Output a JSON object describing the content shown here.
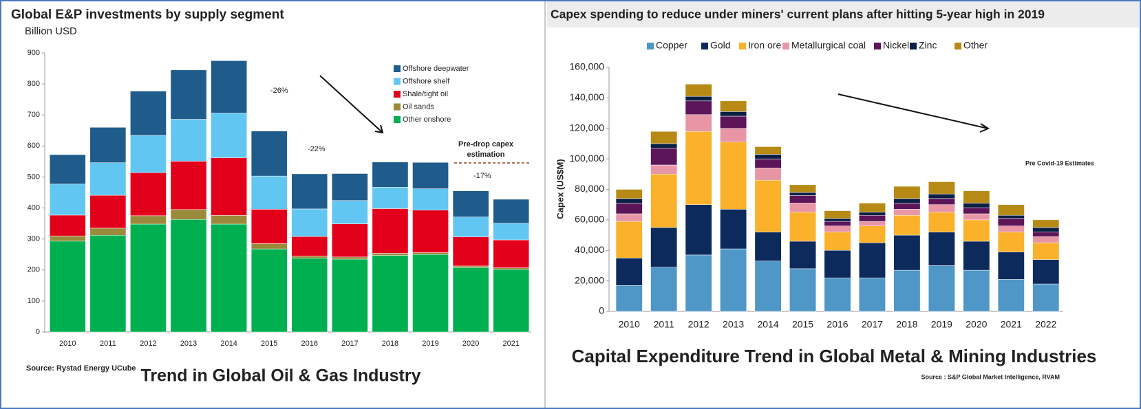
{
  "chart_data": [
    {
      "type": "stacked_bar",
      "title": "Global E&P investments by supply segment",
      "subtitle": "Billion USD",
      "categories": [
        "2010",
        "2011",
        "2012",
        "2013",
        "2014",
        "2015",
        "2016",
        "2017",
        "2018",
        "2019",
        "2020",
        "2021"
      ],
      "series": [
        {
          "name": "Other onshore",
          "color": "#00b050",
          "values": [
            293,
            312,
            348,
            363,
            348,
            268,
            238,
            235,
            247,
            250,
            208,
            202
          ]
        },
        {
          "name": "Oil sands",
          "color": "#9a8b3c",
          "values": [
            17,
            23,
            27,
            32,
            28,
            17,
            7,
            7,
            7,
            6,
            5,
            5
          ]
        },
        {
          "name": "Shale/tight oil",
          "color": "#e3001b",
          "values": [
            67,
            106,
            139,
            156,
            186,
            111,
            63,
            107,
            144,
            137,
            94,
            90
          ]
        },
        {
          "name": "Offshore shelf",
          "color": "#62c6f2",
          "values": [
            100,
            105,
            120,
            135,
            144,
            107,
            89,
            75,
            69,
            69,
            64,
            54
          ]
        },
        {
          "name": "Offshore deepwater",
          "color": "#1f5c8b",
          "values": [
            95,
            114,
            143,
            159,
            169,
            145,
            113,
            87,
            81,
            85,
            84,
            77
          ]
        }
      ],
      "ylim": [
        0,
        900
      ],
      "yticks": [
        0,
        100,
        200,
        300,
        400,
        500,
        600,
        700,
        800,
        900
      ],
      "annotations": [
        "-26%",
        "-22%",
        "-17%"
      ],
      "callout": [
        "Pre-drop capex",
        "estimation"
      ],
      "source": "Source: Rystad Energy UCube",
      "caption": "Trend in Global Oil & Gas Industry"
    },
    {
      "type": "stacked_bar",
      "title": "Capex spending to reduce under miners' current plans after hitting 5-year high in 2019",
      "y_label": "Capex (US$M)",
      "categories": [
        "2010",
        "2011",
        "2012",
        "2013",
        "2014",
        "2015",
        "2016",
        "2017",
        "2018",
        "2019",
        "2020",
        "2021",
        "2022"
      ],
      "series": [
        {
          "name": "Copper",
          "color": "#4f97c6",
          "values": [
            17000,
            29000,
            37000,
            41000,
            33000,
            28000,
            22000,
            22000,
            27000,
            30000,
            27000,
            21000,
            18000
          ]
        },
        {
          "name": "Gold",
          "color": "#0d2a5c",
          "values": [
            18000,
            26000,
            33000,
            26000,
            19000,
            18000,
            18000,
            23000,
            23000,
            22000,
            19000,
            18000,
            16000
          ]
        },
        {
          "name": "Iron ore",
          "color": "#fbb12a",
          "values": [
            24000,
            35000,
            48000,
            44000,
            34000,
            19000,
            12000,
            11000,
            13000,
            13000,
            14000,
            13000,
            11000
          ]
        },
        {
          "name": "Metallurgical coal",
          "color": "#e896a6",
          "values": [
            5000,
            6000,
            11000,
            9000,
            8000,
            6000,
            4000,
            3000,
            4000,
            5000,
            4000,
            4000,
            4000
          ]
        },
        {
          "name": "Nickel",
          "color": "#5c1558",
          "values": [
            7000,
            11000,
            9000,
            8000,
            6000,
            5000,
            3000,
            4000,
            4000,
            4000,
            4000,
            5000,
            3000
          ]
        },
        {
          "name": "Zinc",
          "color": "#0a1f44",
          "values": [
            3000,
            3000,
            3000,
            3000,
            3000,
            2000,
            2000,
            2000,
            3000,
            3000,
            3000,
            2000,
            3000
          ]
        },
        {
          "name": "Other",
          "color": "#b78a16",
          "values": [
            6000,
            8000,
            8000,
            7000,
            5000,
            5000,
            5000,
            6000,
            8000,
            8000,
            8000,
            7000,
            5000
          ]
        }
      ],
      "ylim": [
        0,
        160000
      ],
      "yticks": [
        0,
        {
          "value": 20000,
          "label": "20,000"
        },
        {
          "value": 40000,
          "label": "40,000"
        },
        {
          "value": 60000,
          "label": "60,000"
        },
        {
          "value": 80000,
          "label": "80,000"
        },
        {
          "value": 100000,
          "label": "100,000"
        },
        {
          "value": 120000,
          "label": "120,000"
        },
        {
          "value": 140000,
          "label": "140,000"
        },
        {
          "value": 160000,
          "label": "160,000"
        }
      ],
      "annotations": [
        "Pre Covid-19 Estimates"
      ],
      "source": "Source : S&P Global Market Intelligence, RVAM",
      "caption": "Capital Expenditure Trend in Global Metal & Mining Industries"
    }
  ]
}
